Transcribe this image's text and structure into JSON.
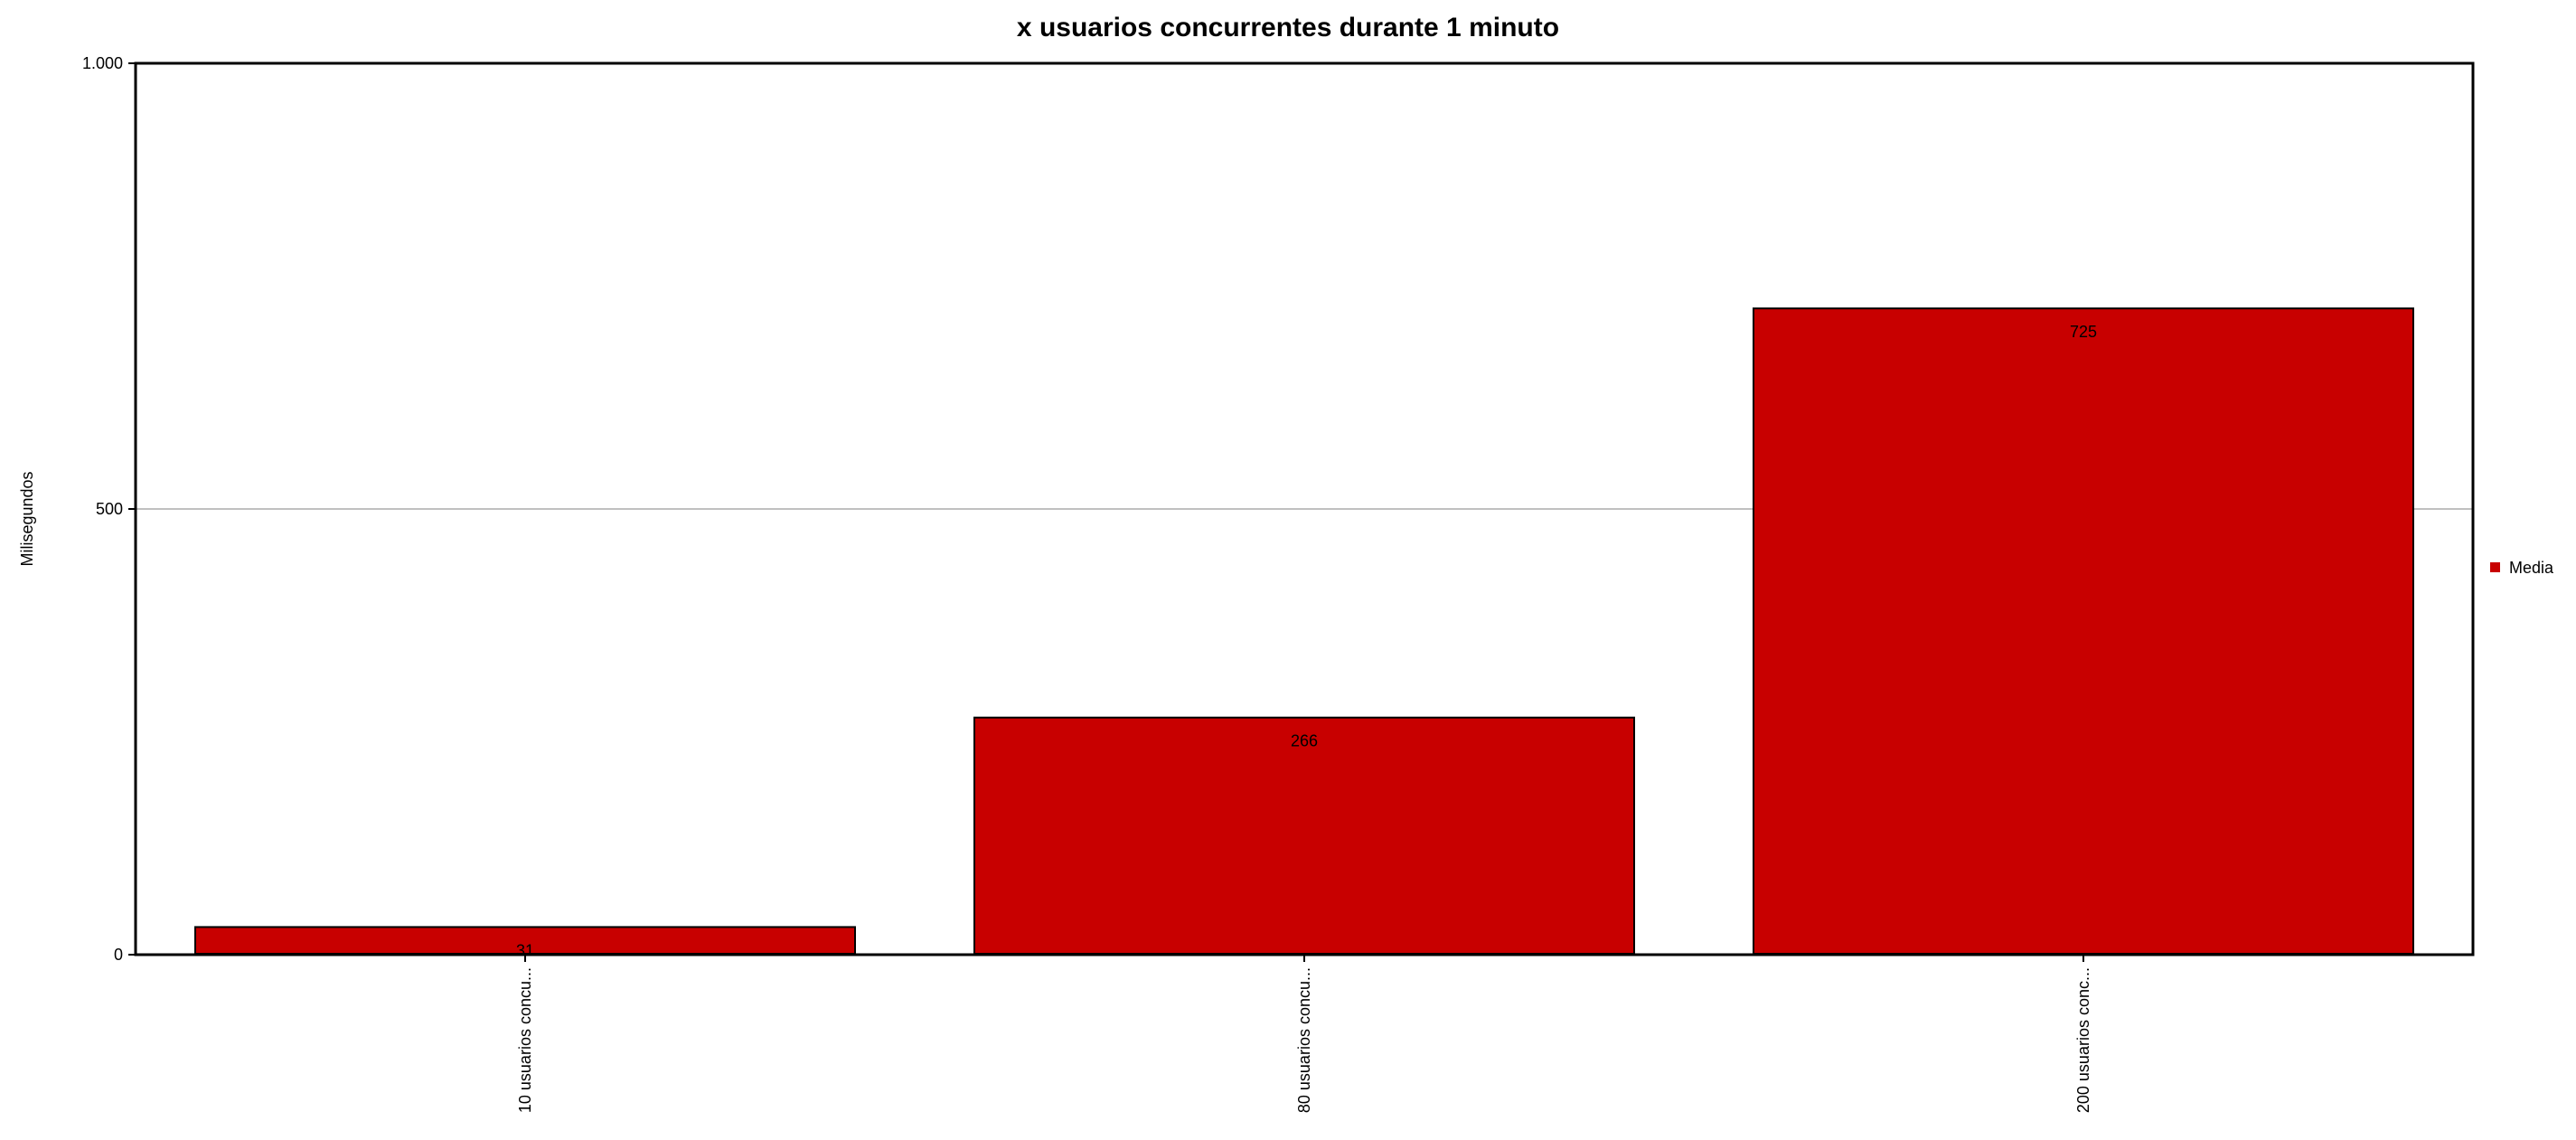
{
  "chart_data": {
    "type": "bar",
    "title": "x usuarios concurrentes durante 1 minuto",
    "xlabel": "",
    "ylabel": "Milisegundos",
    "categories": [
      "10 usuarios concu...",
      "80 usuarios concu...",
      "200 usuarios conc..."
    ],
    "series": [
      {
        "name": "Media",
        "values": [
          31,
          266,
          725
        ],
        "data_labels": [
          "31",
          "266",
          "725"
        ]
      }
    ],
    "ylim": [
      0,
      1000
    ],
    "yticks": [
      0,
      500,
      1000
    ],
    "ytick_labels": [
      "0",
      "500",
      "1.000"
    ],
    "grid": true,
    "legend_position": "right",
    "colors": {
      "bar_fill": "#c80000",
      "bar_stroke": "#000000",
      "grid": "#c0c0c0",
      "axis": "#000000",
      "text": "#000000"
    }
  }
}
